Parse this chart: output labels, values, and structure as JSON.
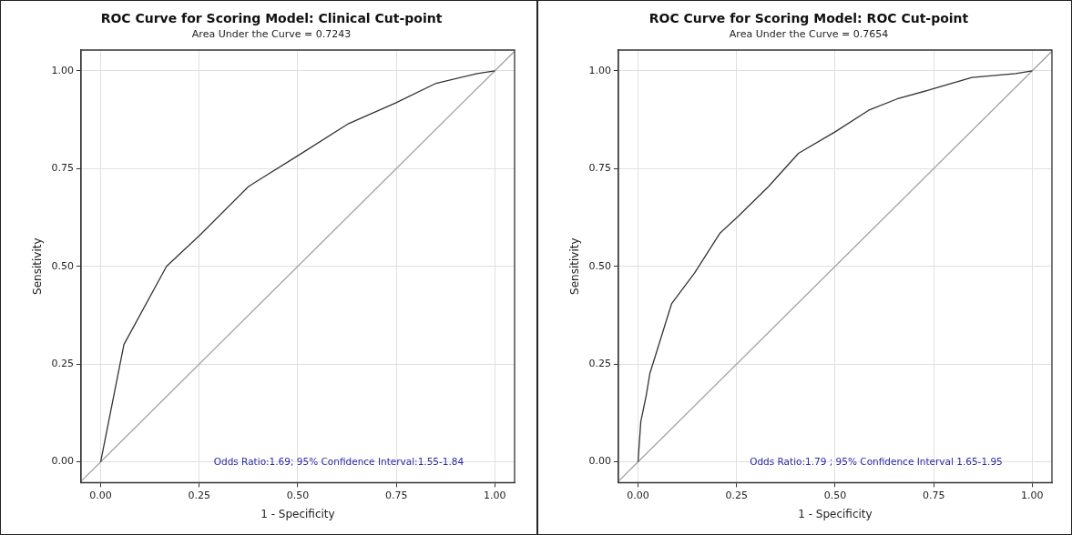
{
  "chart_data": [
    {
      "type": "line",
      "title": "ROC Curve for Scoring Model: Clinical Cut-point",
      "subtitle": "Area Under the Curve = 0.7243",
      "xlabel": "1 - Specificity",
      "ylabel": "Sensitivity",
      "annotations": [
        "Odds Ratio:1.69; 95% Confidence Interval:1.55-1.84"
      ],
      "series": [
        {
          "color": "#333333",
          "x": [
            0,
            0.059,
            0.167,
            0.252,
            0.375,
            0.408,
            0.502,
            0.629,
            0.747,
            0.851,
            0.955,
            1
          ],
          "values": [
            0,
            0.3,
            0.5,
            0.58,
            0.704,
            0.725,
            0.784,
            0.865,
            0.917,
            0.968,
            0.993,
            1
          ]
        },
        {
          "color": "#a0a0a0",
          "x": [
            -0.05,
            1.05
          ],
          "values": [
            -0.05,
            1.05
          ]
        }
      ],
      "xlim": [
        -0.05,
        1.05
      ],
      "ylim": [
        -0.053,
        1.053
      ],
      "xticks": [
        {
          "value": 0,
          "label": "0.00"
        },
        {
          "value": 0.25,
          "label": "0.25"
        },
        {
          "value": 0.5,
          "label": "0.50"
        },
        {
          "value": 0.75,
          "label": "0.75"
        },
        {
          "value": 1,
          "label": "1.00"
        }
      ],
      "yticks": [
        {
          "value": 0,
          "label": "0.00"
        },
        {
          "value": 0.25,
          "label": "0.25"
        },
        {
          "value": 0.5,
          "label": "0.50"
        },
        {
          "value": 0.75,
          "label": "0.75"
        },
        {
          "value": 1,
          "label": "1.00"
        }
      ],
      "grid": true,
      "marker": "none"
    },
    {
      "type": "line",
      "title": "ROC Curve for Scoring Model: ROC Cut-point",
      "subtitle": "Area Under the Curve = 0.7654",
      "xlabel": "1 - Specificity",
      "ylabel": "Sensitivity",
      "annotations": [
        "Odds Ratio:1.79 ; 95% Confidence Interval 1.65-1.95"
      ],
      "series": [
        {
          "color": "#333333",
          "x": [
            0,
            0.007,
            0.021,
            0.03,
            0.085,
            0.144,
            0.208,
            0.254,
            0.331,
            0.407,
            0.5,
            0.585,
            0.657,
            0.746,
            0.847,
            0.958,
            1
          ],
          "values": [
            0,
            0.103,
            0.171,
            0.226,
            0.404,
            0.484,
            0.585,
            0.628,
            0.704,
            0.789,
            0.844,
            0.899,
            0.928,
            0.953,
            0.983,
            0.993,
            1
          ]
        },
        {
          "color": "#a0a0a0",
          "x": [
            -0.05,
            1.05
          ],
          "values": [
            -0.05,
            1.05
          ]
        }
      ],
      "xlim": [
        -0.05,
        1.05
      ],
      "ylim": [
        -0.053,
        1.053
      ],
      "xticks": [
        {
          "value": 0,
          "label": "0.00"
        },
        {
          "value": 0.25,
          "label": "0.25"
        },
        {
          "value": 0.5,
          "label": "0.50"
        },
        {
          "value": 0.75,
          "label": "0.75"
        },
        {
          "value": 1,
          "label": "1.00"
        }
      ],
      "yticks": [
        {
          "value": 0,
          "label": "0.00"
        },
        {
          "value": 0.25,
          "label": "0.25"
        },
        {
          "value": 0.5,
          "label": "0.50"
        },
        {
          "value": 0.75,
          "label": "0.75"
        },
        {
          "value": 1,
          "label": "1.00"
        }
      ],
      "grid": true,
      "marker": "none"
    }
  ]
}
